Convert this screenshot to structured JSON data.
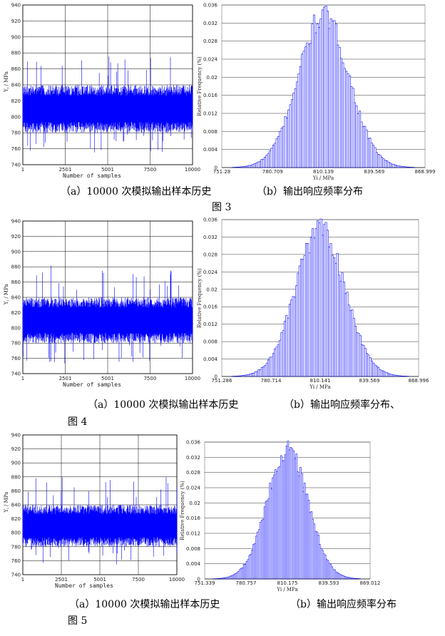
{
  "chart_data": [
    {
      "id": "fig3",
      "caption_a": "（a）10000 次模拟输出样本历史",
      "caption_b": "（b）输出响应频率分布",
      "figure_label": "图 3",
      "history": {
        "type": "line",
        "ylabel": "Y_i / MPa",
        "xlabel": "Number of samples",
        "xlim": [
          1,
          10000
        ],
        "ylim": [
          740,
          940
        ],
        "y_ticks": [
          "940",
          "920",
          "900",
          "880",
          "860",
          "840",
          "820",
          "800",
          "780",
          "760",
          "740"
        ],
        "x_ticks": [
          "1",
          "2501",
          "5001",
          "7500",
          "10000"
        ],
        "band_low": 780,
        "band_high": 840,
        "spike_min": 752,
        "spike_max": 882,
        "color": "#0000ff"
      },
      "histogram": {
        "type": "bar",
        "ylabel": "Relative Frequency (%)",
        "xlabel": "Y_i / MPa",
        "xlim": [
          751.28,
          868.999
        ],
        "ylim": [
          0,
          0.036
        ],
        "x_ticks": [
          "751.28",
          "780.709",
          "810.139",
          "839.569",
          "868.999"
        ],
        "y_ticks": [
          "0.036",
          "0.032",
          "0.028",
          "0.024",
          "0.02",
          "0.016",
          "0.012",
          "0.008",
          "0.004",
          "0"
        ],
        "mean": 810.14,
        "std": 14.6,
        "peak": 0.0335,
        "bins": 120,
        "color": "#0000ff"
      }
    },
    {
      "id": "fig4",
      "caption_a": "（a）10000 次模拟输出样本历史",
      "caption_b": "（b）输出响应频率分布、",
      "figure_label": "图 4",
      "history": {
        "type": "line",
        "ylabel": "Y_i / MPa",
        "xlabel": "Number of samples",
        "xlim": [
          1,
          10000
        ],
        "ylim": [
          740,
          940
        ],
        "y_ticks": [
          "940",
          "920",
          "900",
          "880",
          "860",
          "840",
          "820",
          "800",
          "780",
          "760",
          "740"
        ],
        "x_ticks": [
          "1",
          "2501",
          "5001",
          "7500",
          "10000"
        ],
        "band_low": 780,
        "band_high": 840,
        "spike_min": 752,
        "spike_max": 882,
        "color": "#0000ff"
      },
      "histogram": {
        "type": "bar",
        "ylabel": "Relative Frequency (%)",
        "xlabel": "Y_i / MPa",
        "xlim": [
          751.286,
          868.996
        ],
        "ylim": [
          0,
          0.036
        ],
        "x_ticks": [
          "751.286",
          "780.714",
          "810.141",
          "839.569",
          "868.996"
        ],
        "y_ticks": [
          "0.036",
          "0.032",
          "0.028",
          "0.024",
          "0.02",
          "0.016",
          "0.012",
          "0.008",
          "0.004",
          "0"
        ],
        "mean": 810.14,
        "std": 14.6,
        "peak": 0.0338,
        "bins": 120,
        "color": "#0000ff"
      }
    },
    {
      "id": "fig5",
      "caption_a": "（a）10000 次模拟输出样本历史",
      "caption_b": "（b）输出响应频率分布",
      "figure_label": "图 5",
      "history": {
        "type": "line",
        "ylabel": "Y_i / MPa",
        "xlabel": "Number of samples",
        "xlim": [
          1,
          10000
        ],
        "ylim": [
          740,
          940
        ],
        "y_ticks": [
          "940",
          "920",
          "900",
          "880",
          "860",
          "840",
          "820",
          "800",
          "780",
          "760",
          "740"
        ],
        "x_ticks": [
          "1",
          "2501",
          "5001",
          "7500",
          "10000"
        ],
        "band_low": 780,
        "band_high": 840,
        "spike_min": 752,
        "spike_max": 882,
        "color": "#0000ff"
      },
      "histogram": {
        "type": "bar",
        "ylabel": "Relative Frequency (%)",
        "xlabel": "Y_i / MPa",
        "xlim": [
          751.339,
          869.012
        ],
        "ylim": [
          0,
          0.036
        ],
        "x_ticks": [
          "751.339",
          "780.757",
          "810.175",
          "839.593",
          "869.012"
        ],
        "y_ticks": [
          "0.036",
          "0.032",
          "0.028",
          "0.024",
          "0.02",
          "0.016",
          "0.012",
          "0.008",
          "0.004",
          "0"
        ],
        "mean": 810.18,
        "std": 14.6,
        "peak": 0.0336,
        "bins": 120,
        "color": "#0000ff"
      }
    }
  ]
}
